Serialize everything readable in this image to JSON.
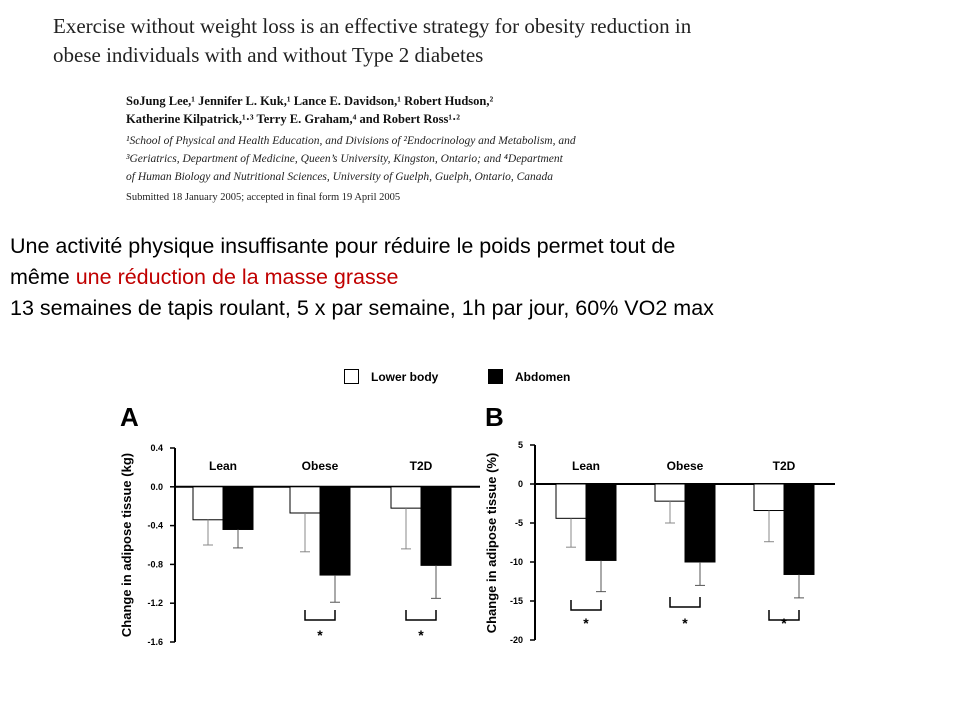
{
  "paper": {
    "title_line1": "Exercise without weight loss is an effective strategy for obesity reduction in",
    "title_line2": "obese individuals with and without Type 2 diabetes",
    "authors_line1": "SoJung Lee,¹ Jennifer L. Kuk,¹ Lance E. Davidson,¹ Robert Hudson,²",
    "authors_line2": "Katherine Kilpatrick,¹·³ Terry E. Graham,⁴ and Robert Ross¹·²",
    "affil_line1": "¹School of Physical and Health Education, and Divisions of ²Endocrinology and Metabolism, and",
    "affil_line2": "³Geriatrics, Department of Medicine, Queen’s University, Kingston, Ontario; and ⁴Department",
    "affil_line3": "of Human Biology and Nutritional Sciences, University of Guelph, Guelph, Ontario, Canada",
    "submitted": "Submitted 18 January 2005; accepted in final form 19 April 2005"
  },
  "slide": {
    "line1": "Une activité physique insuffisante pour réduire le poids permet tout de",
    "line2_black": "même ",
    "line2_red": "une réduction de la masse grasse",
    "line3": "13 semaines de tapis roulant, 5 x par semaine, 1h par jour, 60% VO2 max"
  },
  "legend": {
    "lower_body": "Lower body",
    "abdomen": "Abdomen"
  },
  "colors": {
    "red": "#c00000",
    "black": "#000000"
  },
  "chart_data": [
    {
      "type": "bar",
      "panel": "A",
      "ylabel": "Change in adipose tissue (kg)",
      "ylim": [
        -1.6,
        0.4
      ],
      "yticks": [
        "0.4",
        "0.0",
        "-0.4",
        "-0.8",
        "-1.2",
        "-1.6"
      ],
      "tick_values": [
        0.4,
        0.0,
        -0.4,
        -0.8,
        -1.2,
        -1.6
      ],
      "categories": [
        "Lean",
        "Obese",
        "T2D"
      ],
      "series": [
        {
          "name": "Lower body",
          "values": [
            -0.34,
            -0.27,
            -0.22
          ],
          "errors": [
            0.26,
            0.4,
            0.42
          ]
        },
        {
          "name": "Abdomen",
          "values": [
            -0.44,
            -0.91,
            -0.81
          ],
          "errors": [
            0.19,
            0.28,
            0.34
          ]
        }
      ],
      "significance": [
        "",
        "*",
        "*"
      ]
    },
    {
      "type": "bar",
      "panel": "B",
      "ylabel": "Change in adipose tissue (%)",
      "ylim": [
        -20,
        5
      ],
      "yticks": [
        "5",
        "0",
        "-5",
        "-10",
        "-15",
        "-20"
      ],
      "tick_values": [
        5,
        0,
        -5,
        -10,
        -15,
        -20
      ],
      "categories": [
        "Lean",
        "Obese",
        "T2D"
      ],
      "series": [
        {
          "name": "Lower body",
          "values": [
            -4.4,
            -2.2,
            -3.4
          ],
          "errors": [
            3.7,
            2.8,
            4.0
          ]
        },
        {
          "name": "Abdomen",
          "values": [
            -9.8,
            -10.0,
            -11.6
          ],
          "errors": [
            4.0,
            3.0,
            3.0
          ]
        }
      ],
      "significance": [
        "*",
        "*",
        "*"
      ]
    }
  ]
}
